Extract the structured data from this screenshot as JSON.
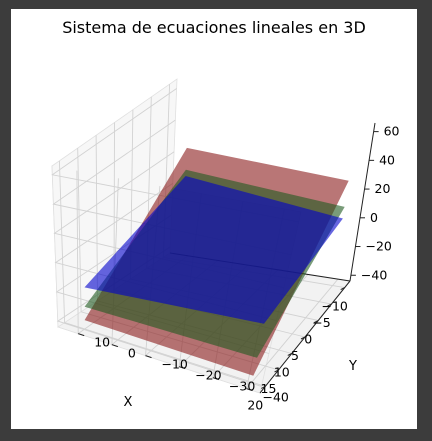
{
  "chart_data": {
    "type": "surface3d",
    "title": "Sistema de ecuaciones lineales en 3D",
    "xlabel": "X",
    "ylabel": "Y",
    "zlabel": "",
    "x_ticks": [
      -10,
      -5,
      0,
      5,
      10,
      15,
      20
    ],
    "y_ticks": [
      -40,
      -30,
      -20,
      -10,
      0,
      10
    ],
    "z_ticks": [
      -40,
      -20,
      0,
      20,
      40,
      60
    ],
    "xlim": [
      -12,
      22
    ],
    "ylim": [
      -44,
      16
    ],
    "zlim": [
      -44,
      66
    ],
    "grid": true,
    "series": [
      {
        "color": "#8b1a1a",
        "alpha": 0.6,
        "corners": [
          {
            "x": -10,
            "y": -40,
            "z": 28
          },
          {
            "x": 20,
            "y": -40,
            "z": -40
          },
          {
            "x": 20,
            "y": 10,
            "z": -38
          },
          {
            "x": -10,
            "y": 10,
            "z": 28
          }
        ]
      },
      {
        "color": "#1f5a1f",
        "alpha": 0.6,
        "corners": [
          {
            "x": -10,
            "y": -40,
            "z": 10
          },
          {
            "x": 20,
            "y": -40,
            "z": -29
          },
          {
            "x": 20,
            "y": 10,
            "z": -29
          },
          {
            "x": -10,
            "y": 10,
            "z": 14
          }
        ]
      },
      {
        "color": "#0000cc",
        "alpha": 0.6,
        "corners": [
          {
            "x": -10,
            "y": -40,
            "z": 2
          },
          {
            "x": 20,
            "y": -40,
            "z": -8
          },
          {
            "x": 20,
            "y": 10,
            "z": -16
          },
          {
            "x": -10,
            "y": 10,
            "z": 10
          }
        ]
      }
    ]
  }
}
